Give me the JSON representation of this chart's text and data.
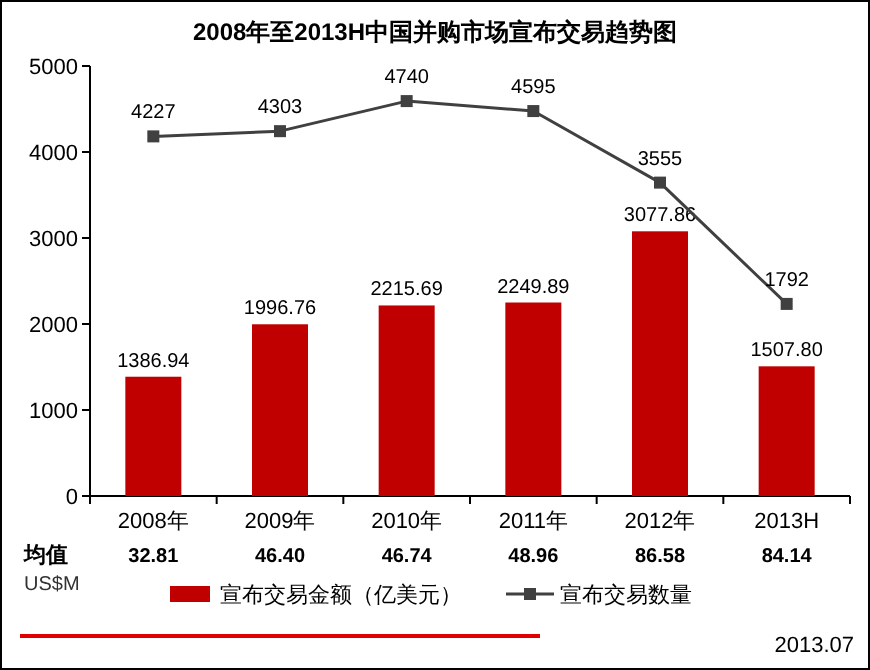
{
  "chart_data": {
    "type": "bar",
    "title": "2008年至2013H中国并购市场宣布交易趋势图",
    "categories": [
      "2008年",
      "2009年",
      "2010年",
      "2011年",
      "2012年",
      "2013H"
    ],
    "series": [
      {
        "name": "宣布交易金额（亿美元）",
        "color": "#c00000",
        "values": [
          1386.94,
          1996.76,
          2215.69,
          2249.89,
          3077.86,
          1507.8
        ],
        "value_labels": [
          "1386.94",
          "1996.76",
          "2215.69",
          "2249.89",
          "3077.86",
          "1507.80"
        ]
      },
      {
        "name": "宣布交易数量",
        "type": "line",
        "axis": "y2",
        "color": "#404040",
        "marker": "square",
        "values": [
          4227,
          4303,
          4740,
          4595,
          3555,
          1792
        ],
        "value_labels": [
          "4227",
          "4303",
          "4740",
          "4595",
          "3555",
          "1792"
        ]
      }
    ],
    "ylim": [
      0,
      5000
    ],
    "y2lim": [
      -1000,
      5250
    ],
    "yticks": [
      0,
      1000,
      2000,
      3000,
      4000,
      5000
    ],
    "legend": "bottom",
    "annotations": [
      "均值",
      "US$M",
      "32.81",
      "46.40",
      "46.74",
      "48.96",
      "86.58",
      "84.14",
      "2013.07"
    ]
  }
}
